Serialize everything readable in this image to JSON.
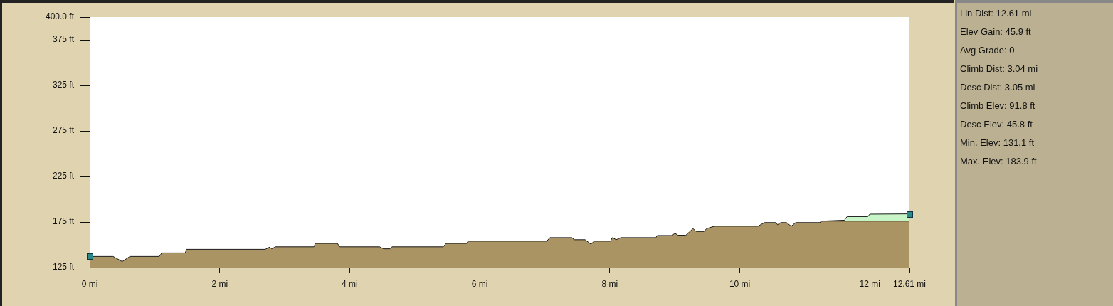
{
  "chart_data": {
    "type": "area",
    "xlim": [
      0,
      12.61
    ],
    "xticks": [
      {
        "value": 0,
        "label": "0 mi"
      },
      {
        "value": 2,
        "label": "2 mi"
      },
      {
        "value": 4,
        "label": "4 mi"
      },
      {
        "value": 6,
        "label": "6 mi"
      },
      {
        "value": 8,
        "label": "8 mi"
      },
      {
        "value": 10,
        "label": "10 mi"
      },
      {
        "value": 12,
        "label": "12 mi"
      },
      {
        "value": 12.61,
        "label": "12.61 mi"
      }
    ],
    "ylim": [
      125,
      400
    ],
    "yticks": [
      {
        "value": 125,
        "label": "125 ft"
      },
      {
        "value": 175,
        "label": "175 ft"
      },
      {
        "value": 225,
        "label": "225 ft"
      },
      {
        "value": 275,
        "label": "275 ft"
      },
      {
        "value": 325,
        "label": "325 ft"
      },
      {
        "value": 375,
        "label": "375 ft"
      },
      {
        "value": 400,
        "label": "400.0 ft"
      }
    ],
    "grid": false,
    "legend": false,
    "marker": "none",
    "series": [
      {
        "color": "#ab9464",
        "x": [
          0,
          0.36,
          0.5,
          0.62,
          1.07,
          1.11,
          1.47,
          1.49,
          2.7,
          2.77,
          2.8,
          2.86,
          3.45,
          3.47,
          3.81,
          3.85,
          4.46,
          4.52,
          4.62,
          4.65,
          5.44,
          5.48,
          5.8,
          5.82,
          7.03,
          7.08,
          7.42,
          7.45,
          7.62,
          7.71,
          7.76,
          8.01,
          8.04,
          8.1,
          8.17,
          8.71,
          8.73,
          8.96,
          9,
          9.05,
          9.17,
          9.22,
          9.28,
          9.33,
          9.45,
          9.49,
          9.61,
          10.28,
          10.38,
          10.56,
          10.58,
          10.63,
          10.72,
          10.79,
          10.86,
          11.23,
          11.26,
          12.61
        ],
        "values": [
          137.2,
          137.2,
          131.6,
          137.2,
          137.2,
          141.1,
          141.1,
          145,
          145,
          147.5,
          145.6,
          147.8,
          147.8,
          151.5,
          151.5,
          147.8,
          147.8,
          145.6,
          145.6,
          147.8,
          147.8,
          151.5,
          151.5,
          154,
          154,
          157.9,
          157.9,
          155.6,
          155.6,
          150.7,
          154,
          154,
          157.9,
          155.6,
          157.9,
          157.9,
          160.2,
          160.2,
          162.8,
          160.5,
          160.5,
          163.8,
          167.8,
          164.6,
          164.6,
          167.8,
          170.4,
          170.4,
          174.4,
          174.4,
          172,
          174.4,
          174.4,
          170.4,
          174.4,
          174.4,
          176,
          176
        ]
      },
      {
        "color": "#c8f5c8",
        "x": [
          11.23,
          11.26,
          11.61,
          11.65,
          11.97,
          12,
          12.61
        ],
        "values": [
          174.4,
          176,
          177,
          180.9,
          180.9,
          183.6,
          183.9
        ]
      }
    ],
    "annotations": [
      "Lin Dist: 12.61 mi",
      "Elev Gain: 45.9 ft",
      "Avg Grade: 0",
      "Climb Dist: 3.04 mi",
      "Desc Dist: 3.05 mi",
      "Climb Elev: 91.8 ft",
      "Desc Elev: 45.8 ft",
      "Min. Elev: 131.1 ft",
      "Max. Elev: 183.9 ft"
    ]
  }
}
